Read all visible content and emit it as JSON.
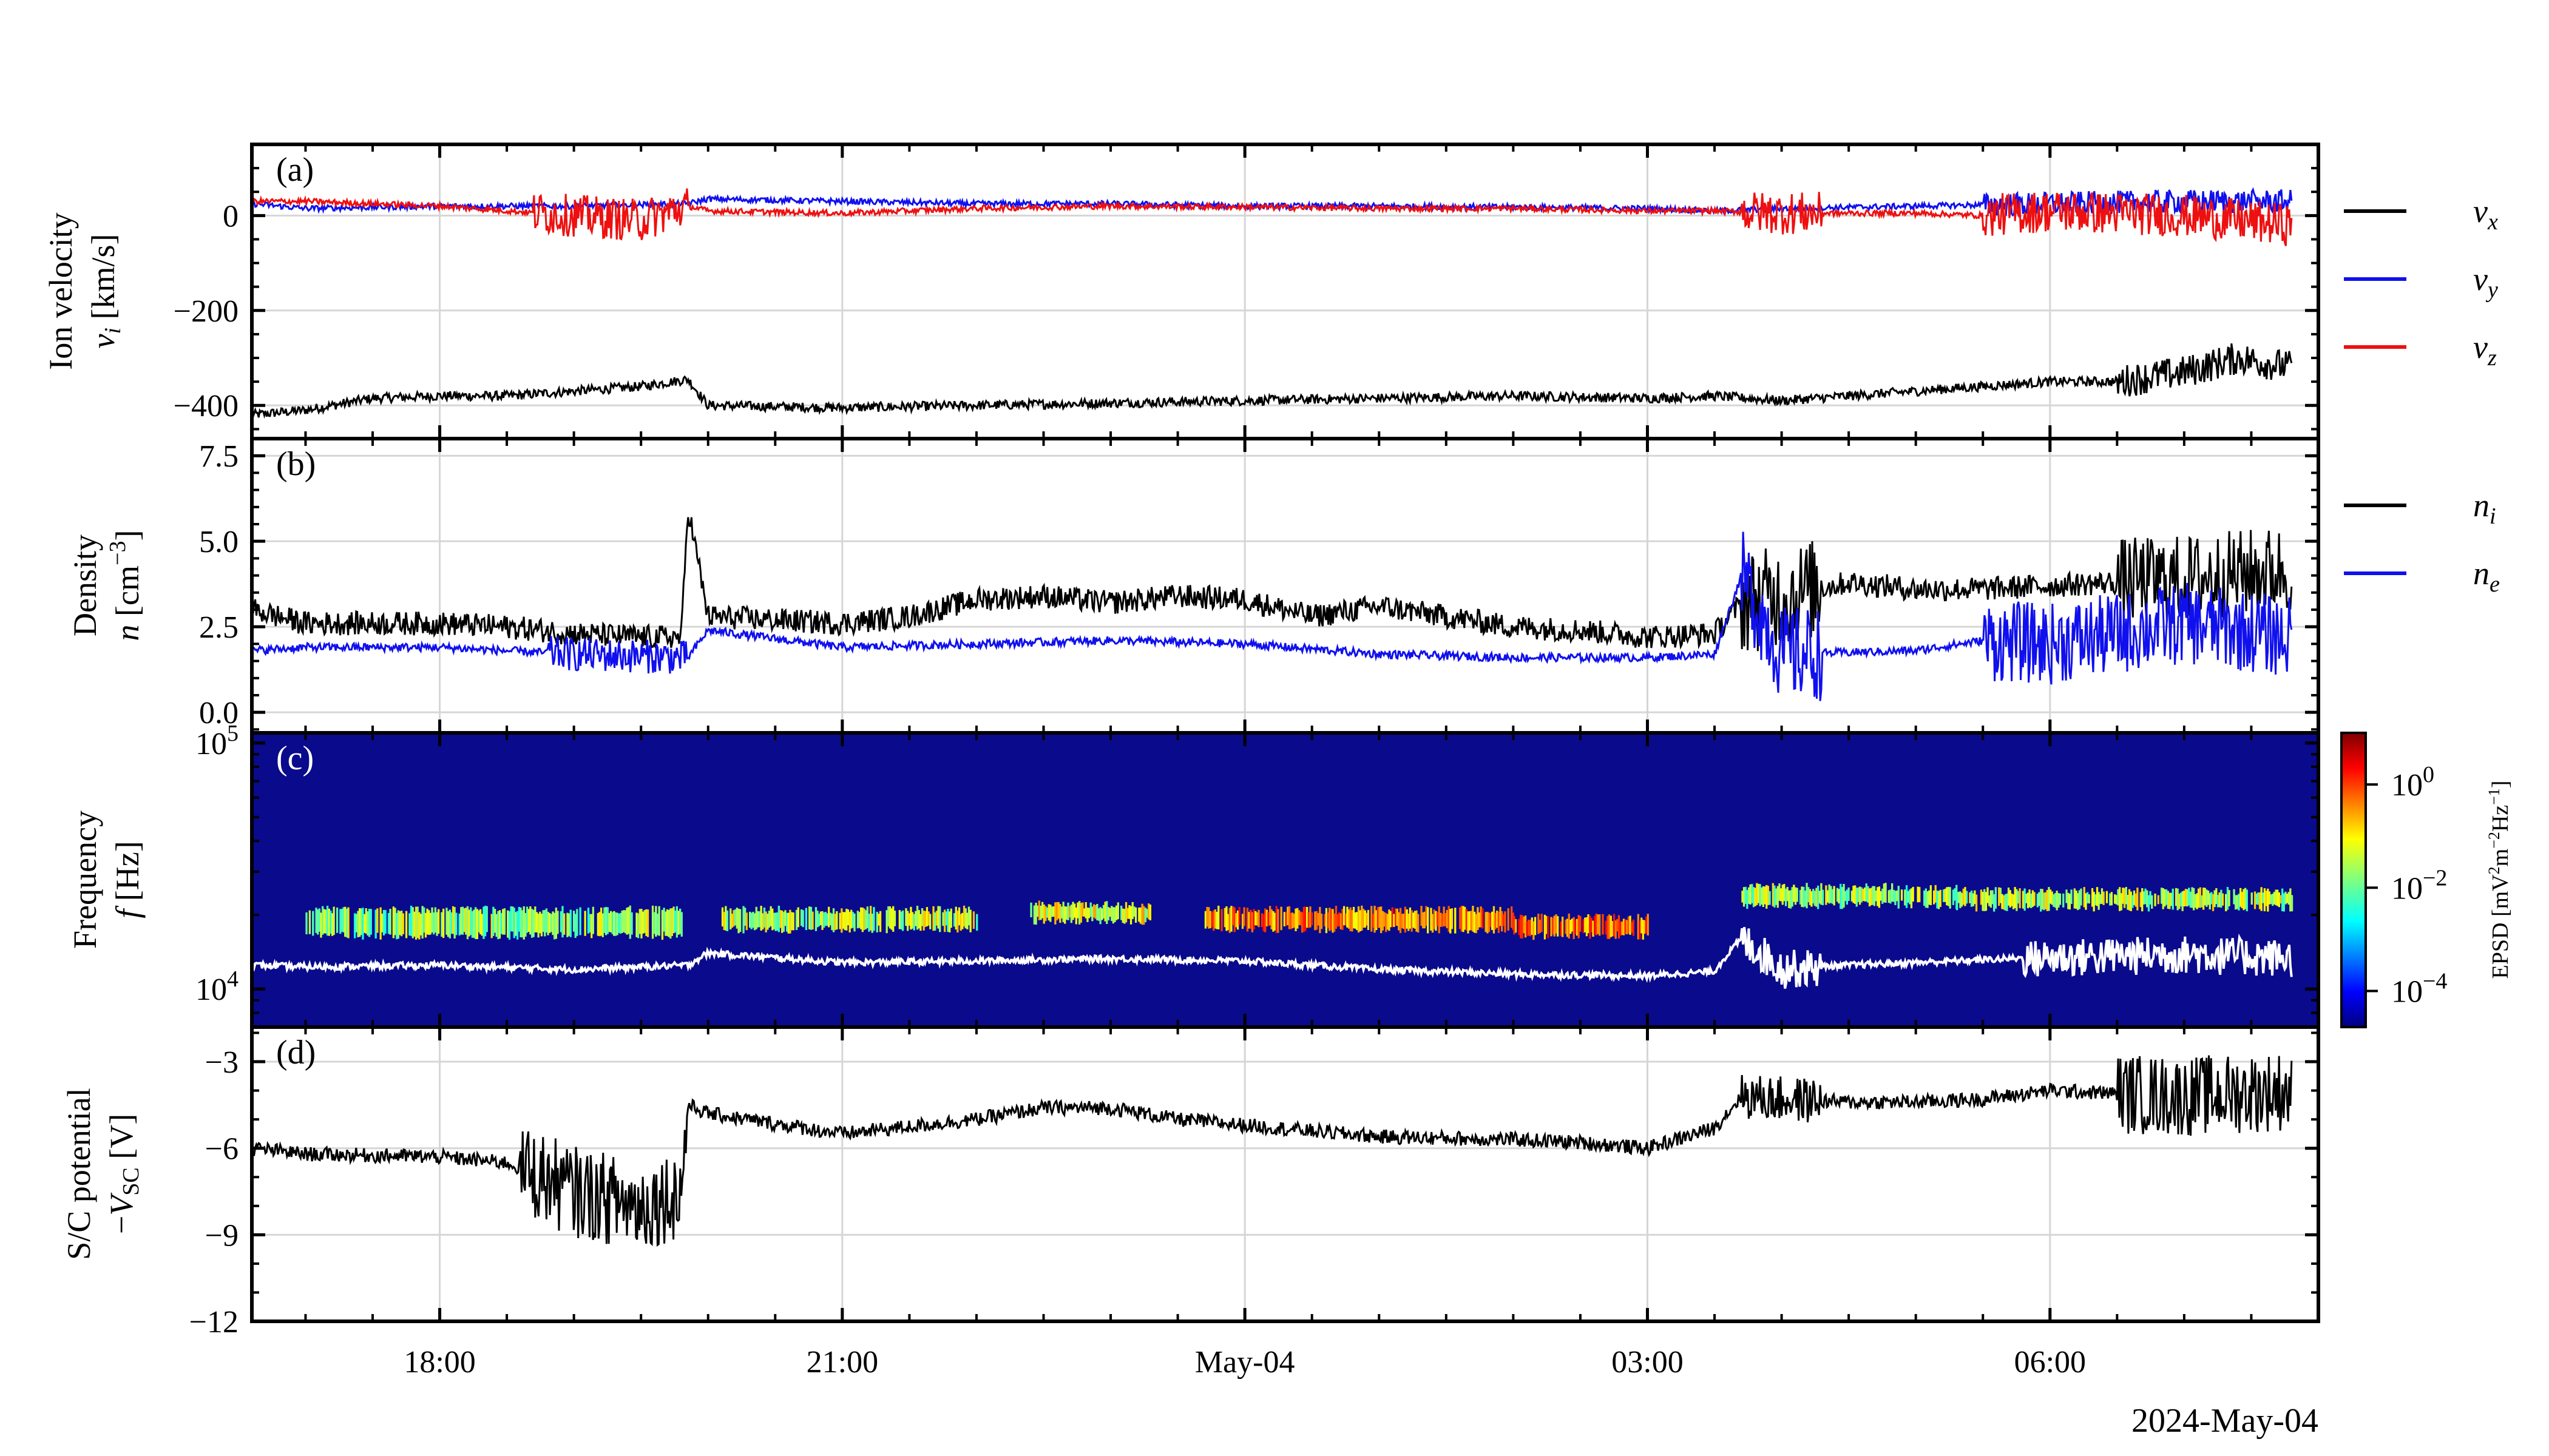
{
  "chart_data": [
    {
      "panel": "(a)",
      "type": "line",
      "ylabel": "Ion velocity",
      "ylabel_sub": "v_i [km/s]",
      "yticks": [
        "0",
        "−200",
        "−400"
      ],
      "ytick_values": [
        0,
        -200,
        -400
      ],
      "ylim": [
        -470,
        150
      ],
      "legend_placement": "right",
      "series": [
        {
          "name": "v_x",
          "legend_main": "v",
          "legend_sub": "x",
          "color": "#000000",
          "x": [
            16.6,
            17.0,
            17.5,
            18.0,
            18.5,
            19.0,
            19.5,
            19.85,
            20.0,
            21.0,
            22.0,
            23.0,
            24.0,
            25.0,
            26.0,
            27.0,
            27.5,
            28.0,
            29.0,
            29.5,
            30.0,
            30.5,
            31.0,
            31.4,
            31.8
          ],
          "values": [
            -420,
            -410,
            -385,
            -380,
            -380,
            -370,
            -360,
            -345,
            -400,
            -405,
            -400,
            -395,
            -390,
            -385,
            -380,
            -385,
            -380,
            -390,
            -370,
            -360,
            -350,
            -350,
            -330,
            -300,
            -320
          ]
        },
        {
          "name": "v_y",
          "legend_main": "v",
          "legend_sub": "y",
          "color": "#1010ee",
          "x": [
            16.6,
            17.0,
            18.0,
            19.0,
            19.85,
            20.0,
            21.0,
            22.0,
            23.0,
            24.0,
            25.0,
            26.0,
            27.0,
            27.5,
            28.0,
            29.0,
            30.0,
            31.0,
            31.8
          ],
          "values": [
            25,
            15,
            20,
            20,
            25,
            35,
            30,
            25,
            25,
            20,
            20,
            18,
            15,
            10,
            15,
            20,
            25,
            30,
            30
          ]
        },
        {
          "name": "v_z",
          "legend_main": "v",
          "legend_sub": "z",
          "color": "#ee1010",
          "x": [
            16.6,
            17.0,
            18.0,
            19.0,
            19.5,
            19.85,
            20.0,
            21.0,
            22.0,
            23.0,
            24.0,
            25.0,
            26.0,
            27.0,
            27.5,
            28.0,
            29.0,
            29.5,
            30.0,
            31.0,
            31.8
          ],
          "values": [
            30,
            30,
            20,
            0,
            -10,
            20,
            10,
            5,
            15,
            20,
            18,
            15,
            15,
            10,
            10,
            5,
            5,
            0,
            10,
            0,
            -20
          ]
        }
      ]
    },
    {
      "panel": "(b)",
      "type": "line",
      "ylabel": "Density",
      "ylabel_sub": "n [cm^-3]",
      "yticks": [
        "0.0",
        "2.5",
        "5.0",
        "7.5"
      ],
      "ytick_values": [
        0,
        2.5,
        5,
        7.5
      ],
      "ylim": [
        -0.6,
        8.0
      ],
      "legend_placement": "right",
      "series": [
        {
          "name": "n_i",
          "legend_main": "n",
          "legend_sub": "i",
          "color": "#000000",
          "x": [
            16.6,
            17.0,
            18.0,
            18.5,
            19.0,
            19.5,
            19.8,
            19.85,
            20.0,
            21.0,
            21.5,
            22.0,
            22.5,
            23.0,
            23.5,
            24.0,
            24.5,
            25.0,
            26.0,
            26.5,
            27.0,
            27.5,
            27.7,
            28.0,
            28.5,
            29.0,
            29.5,
            30.0,
            30.5,
            31.0,
            31.8
          ],
          "values": [
            3.0,
            2.6,
            2.6,
            2.5,
            2.3,
            2.2,
            2.2,
            6.0,
            2.8,
            2.6,
            2.8,
            3.3,
            3.4,
            3.2,
            3.4,
            3.3,
            2.8,
            3.1,
            2.5,
            2.4,
            2.2,
            2.3,
            3.2,
            3.4,
            3.8,
            3.6,
            3.6,
            3.7,
            3.8,
            3.9,
            4.2
          ]
        },
        {
          "name": "n_e",
          "legend_main": "n",
          "legend_sub": "e",
          "color": "#1010ee",
          "x": [
            16.6,
            17.0,
            18.0,
            19.0,
            19.85,
            20.0,
            21.0,
            22.0,
            23.0,
            24.0,
            25.0,
            26.0,
            27.0,
            27.5,
            27.7,
            28.0,
            29.0,
            29.5,
            30.0,
            30.5,
            31.0,
            31.8
          ],
          "values": [
            1.8,
            1.9,
            1.9,
            1.7,
            1.6,
            2.4,
            1.9,
            2.0,
            2.1,
            2.0,
            1.7,
            1.6,
            1.6,
            1.7,
            4.0,
            1.7,
            1.8,
            2.1,
            2.0,
            2.3,
            2.6,
            2.2
          ]
        }
      ]
    },
    {
      "panel": "(c)",
      "type": "heatmap",
      "ylabel": "Frequency",
      "ylabel_sub": "f [Hz]",
      "yscale": "log",
      "yticks": [
        "10^4",
        "10^5"
      ],
      "ylim": [
        7000,
        110000
      ],
      "background_color": "#0a0a8c",
      "colorbar": {
        "scale": "log",
        "ticks": [
          "10^0",
          "10^-2",
          "10^-4"
        ],
        "tick_base": "10",
        "tick_exponents": [
          "0",
          "−2",
          "−4"
        ],
        "range": [
          2e-05,
          10
        ],
        "label": "EPSD [mV^2m^-2Hz^-1]",
        "label_main": "EPSD [mV",
        "label_sup1": "2",
        "label_mid": "m",
        "label_sup2": "−2",
        "label_hz": "Hz",
        "label_sup3": "−1",
        "label_end": "]"
      },
      "emission_band": [
        {
          "x0": 17.0,
          "x1": 19.8,
          "f_low": 16500,
          "f_high": 21000,
          "level": 0.02
        },
        {
          "x0": 20.1,
          "x1": 22.0,
          "f_low": 17500,
          "f_high": 21000,
          "level": 0.03
        },
        {
          "x0": 22.4,
          "x1": 23.3,
          "f_low": 19000,
          "f_high": 22000,
          "level": 0.05
        },
        {
          "x0": 23.7,
          "x1": 26.0,
          "f_low": 17500,
          "f_high": 21000,
          "level": 0.3
        },
        {
          "x0": 26.0,
          "x1": 27.0,
          "f_low": 16500,
          "f_high": 19500,
          "level": 0.5
        },
        {
          "x0": 27.7,
          "x1": 29.3,
          "f_low": 22000,
          "f_high": 26000,
          "level": 0.02
        },
        {
          "x0": 29.3,
          "x1": 31.8,
          "f_low": 21500,
          "f_high": 25000,
          "level": 0.03
        }
      ],
      "plasma_line": {
        "color": "#ffffff",
        "x": [
          16.6,
          17.0,
          18.0,
          19.0,
          19.85,
          20.0,
          21.0,
          22.0,
          23.0,
          24.0,
          25.0,
          26.0,
          27.0,
          27.5,
          27.7,
          28.0,
          29.0,
          30.0,
          31.0,
          31.8
        ],
        "values": [
          12500,
          12300,
          12500,
          12000,
          12500,
          14000,
          12800,
          13000,
          13300,
          13000,
          12000,
          11500,
          11300,
          11800,
          16000,
          12200,
          12800,
          13500,
          14000,
          13500
        ]
      }
    },
    {
      "panel": "(d)",
      "type": "line",
      "ylabel": "S/C potential",
      "ylabel_sub": "−V_SC [V]",
      "yticks": [
        "−3",
        "−6",
        "−9",
        "−12"
      ],
      "ytick_values": [
        -3,
        -6,
        -9,
        -12
      ],
      "ylim": [
        -12,
        -1.8
      ],
      "series": [
        {
          "name": "−V_SC",
          "color": "#000000",
          "x": [
            16.6,
            17.0,
            18.0,
            18.5,
            19.0,
            19.5,
            19.8,
            19.85,
            20.0,
            21.0,
            22.0,
            22.5,
            23.0,
            23.5,
            24.0,
            25.0,
            26.0,
            26.5,
            27.0,
            27.5,
            27.7,
            28.0,
            28.5,
            29.0,
            29.5,
            30.0,
            30.5,
            31.0,
            31.8
          ],
          "values": [
            -6.0,
            -6.2,
            -6.3,
            -6.5,
            -7.5,
            -8.0,
            -7.5,
            -4.5,
            -4.8,
            -5.5,
            -5.0,
            -4.6,
            -4.6,
            -5.0,
            -5.2,
            -5.6,
            -5.7,
            -5.8,
            -6.0,
            -5.3,
            -4.2,
            -4.3,
            -4.4,
            -4.4,
            -4.3,
            -4.0,
            -4.1,
            -4.2,
            -4.0
          ]
        }
      ]
    }
  ],
  "xaxis": {
    "ticks": [
      "18:00",
      "21:00",
      "May-04",
      "03:00",
      "06:00"
    ],
    "tick_hours": [
      18,
      21,
      24,
      27,
      30
    ],
    "range_hours": [
      16.6,
      32.0
    ],
    "date_label": "2024-May-04"
  }
}
